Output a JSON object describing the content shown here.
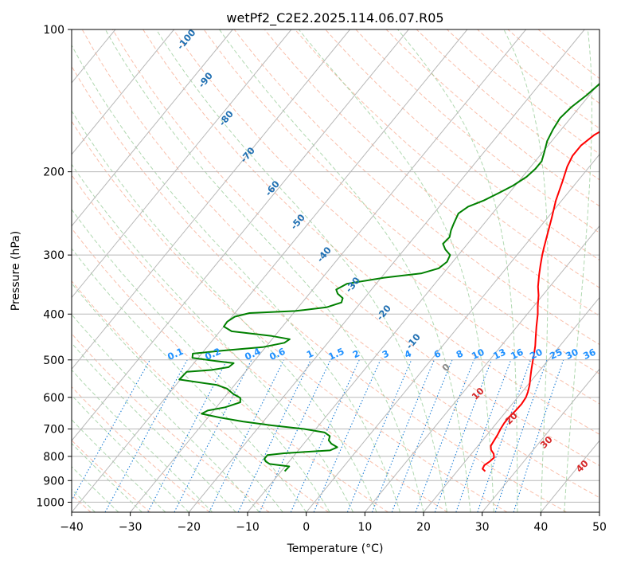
{
  "chart_data": {
    "type": "line",
    "title": "wetPf2_C2E2.2025.114.06.07.R05",
    "xlabel": "Temperature (°C)",
    "ylabel": "Pressure (hPa)",
    "xlim": [
      -40,
      50
    ],
    "ylim": [
      1050,
      100
    ],
    "y_scale": "log",
    "grid": true,
    "x_ticks": [
      -40,
      -30,
      -20,
      -10,
      0,
      10,
      20,
      30,
      40,
      50
    ],
    "y_ticks": [
      100,
      200,
      300,
      400,
      500,
      600,
      700,
      800,
      900,
      1000
    ],
    "skew": "skew-T (isotherms slanted)",
    "series": [
      {
        "color": "#ff0000",
        "role": "temperature",
        "points": [
          [
            24.8,
            860
          ],
          [
            24.0,
            850
          ],
          [
            23.8,
            835
          ],
          [
            24.2,
            820
          ],
          [
            24.4,
            805
          ],
          [
            23.8,
            790
          ],
          [
            22.8,
            775
          ],
          [
            22.2,
            760
          ],
          [
            22.0,
            740
          ],
          [
            21.8,
            720
          ],
          [
            21.5,
            700
          ],
          [
            21.3,
            680
          ],
          [
            21.3,
            660
          ],
          [
            21.5,
            640
          ],
          [
            21.6,
            620
          ],
          [
            21.4,
            600
          ],
          [
            21.0,
            585
          ],
          [
            20.3,
            565
          ],
          [
            19.4,
            545
          ],
          [
            18.5,
            525
          ],
          [
            17.6,
            505
          ],
          [
            16.7,
            485
          ],
          [
            15.8,
            467
          ],
          [
            14.8,
            450
          ],
          [
            13.3,
            425
          ],
          [
            11.8,
            400
          ],
          [
            10.7,
            385
          ],
          [
            9.3,
            365
          ],
          [
            8.0,
            350
          ],
          [
            6.5,
            330
          ],
          [
            5.4,
            315
          ],
          [
            4.3,
            300
          ],
          [
            3.6,
            290
          ],
          [
            2.2,
            270
          ],
          [
            0.7,
            250
          ],
          [
            -1.0,
            230
          ],
          [
            -2.5,
            210
          ],
          [
            -3.8,
            195
          ],
          [
            -4.4,
            185
          ],
          [
            -4.4,
            176
          ],
          [
            -3.6,
            167
          ],
          [
            -2.2,
            160
          ],
          [
            -0.7,
            155
          ],
          [
            1.8,
            148
          ],
          [
            4.2,
            143
          ],
          [
            6.5,
            138
          ],
          [
            8.8,
            133
          ],
          [
            10.8,
            128
          ],
          [
            12.5,
            123
          ],
          [
            14.0,
            118
          ],
          [
            15.0,
            114
          ],
          [
            15.6,
            110
          ],
          [
            15.7,
            106
          ],
          [
            15.9,
            102
          ],
          [
            16.0,
            100
          ]
        ]
      },
      {
        "color": "#008000",
        "role": "dewpoint",
        "points": [
          [
            -9.4,
            860
          ],
          [
            -9.3,
            840
          ],
          [
            -13.0,
            830
          ],
          [
            -14.0,
            820
          ],
          [
            -14.6,
            810
          ],
          [
            -14.6,
            795
          ],
          [
            -12.0,
            788
          ],
          [
            -8.3,
            782
          ],
          [
            -4.6,
            777
          ],
          [
            -3.8,
            765
          ],
          [
            -5.3,
            752
          ],
          [
            -6.2,
            740
          ],
          [
            -6.6,
            725
          ],
          [
            -8.0,
            712
          ],
          [
            -12.0,
            700
          ],
          [
            -18.0,
            688
          ],
          [
            -23.5,
            675
          ],
          [
            -28.0,
            662
          ],
          [
            -31.6,
            650
          ],
          [
            -31.0,
            640
          ],
          [
            -28.5,
            630
          ],
          [
            -26.6,
            615
          ],
          [
            -27.2,
            602
          ],
          [
            -29.0,
            590
          ],
          [
            -30.8,
            575
          ],
          [
            -33.0,
            565
          ],
          [
            -40.2,
            550
          ],
          [
            -40.0,
            530
          ],
          [
            -36.0,
            525
          ],
          [
            -33.5,
            518
          ],
          [
            -33.2,
            508
          ],
          [
            -36.5,
            503
          ],
          [
            -41.0,
            495
          ],
          [
            -41.5,
            485
          ],
          [
            -37.0,
            478
          ],
          [
            -30.5,
            470
          ],
          [
            -27.4,
            460
          ],
          [
            -27.0,
            452
          ],
          [
            -30.5,
            445
          ],
          [
            -38.0,
            435
          ],
          [
            -40.0,
            425
          ],
          [
            -40.1,
            415
          ],
          [
            -39.5,
            405
          ],
          [
            -37.5,
            398
          ],
          [
            -30.0,
            394
          ],
          [
            -25.2,
            387
          ],
          [
            -23.3,
            378
          ],
          [
            -23.7,
            370
          ],
          [
            -25.2,
            362
          ],
          [
            -26.0,
            355
          ],
          [
            -25.0,
            345
          ],
          [
            -19.5,
            335
          ],
          [
            -13.7,
            328
          ],
          [
            -11.5,
            320
          ],
          [
            -11.0,
            310
          ],
          [
            -11.4,
            300
          ],
          [
            -13.0,
            292
          ],
          [
            -14.2,
            284
          ],
          [
            -14.0,
            275
          ],
          [
            -14.7,
            266
          ],
          [
            -15.2,
            257
          ],
          [
            -15.8,
            245
          ],
          [
            -15.1,
            237
          ],
          [
            -13.3,
            230
          ],
          [
            -11.8,
            222
          ],
          [
            -10.4,
            214
          ],
          [
            -9.3,
            205
          ],
          [
            -8.9,
            197
          ],
          [
            -8.9,
            190
          ],
          [
            -9.7,
            182
          ],
          [
            -10.8,
            172
          ],
          [
            -11.4,
            163
          ],
          [
            -11.8,
            154
          ],
          [
            -11.4,
            146
          ],
          [
            -10.5,
            138
          ],
          [
            -9.8,
            130
          ],
          [
            -7.4,
            122
          ],
          [
            -5.0,
            115
          ],
          [
            -2.6,
            110
          ],
          [
            -0.8,
            106
          ],
          [
            0.0,
            100
          ]
        ]
      }
    ],
    "mixing_ratio_labels": [
      "0.1",
      "0.2",
      "0.4",
      "0.6",
      "1",
      "1.5",
      "2",
      "3",
      "4",
      "6",
      "8",
      "10",
      "13",
      "16",
      "20",
      "25",
      "30",
      "36"
    ],
    "dry_adiabat_labels": [
      "-100",
      "-90",
      "-80",
      "-70",
      "-60",
      "-50",
      "-40",
      "-30",
      "-20",
      "-10"
    ],
    "moist_adiabat_labels": [
      "0",
      "10",
      "20",
      "30",
      "40"
    ]
  }
}
